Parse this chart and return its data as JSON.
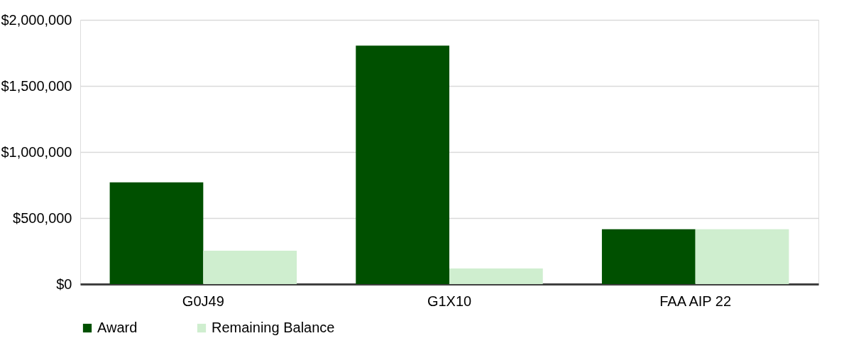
{
  "chart_data": {
    "type": "bar",
    "categories": [
      "G0J49",
      "G1X10",
      "FAA AIP 22"
    ],
    "series": [
      {
        "name": "Award",
        "color": "#005000",
        "values": [
          770000,
          1805000,
          415000
        ]
      },
      {
        "name": "Remaining Balance",
        "color": "#cfeecf",
        "values": [
          253000,
          118000,
          415000
        ]
      }
    ],
    "ylim": [
      0,
      2000000
    ],
    "yticks": [
      {
        "value": 0,
        "label": "$0"
      },
      {
        "value": 500000,
        "label": "$500,000"
      },
      {
        "value": 1000000,
        "label": "$1,000,000"
      },
      {
        "value": 1500000,
        "label": "$1,500,000"
      },
      {
        "value": 2000000,
        "label": "$2,000,000"
      }
    ],
    "grid": "y",
    "legend": "bottom"
  }
}
